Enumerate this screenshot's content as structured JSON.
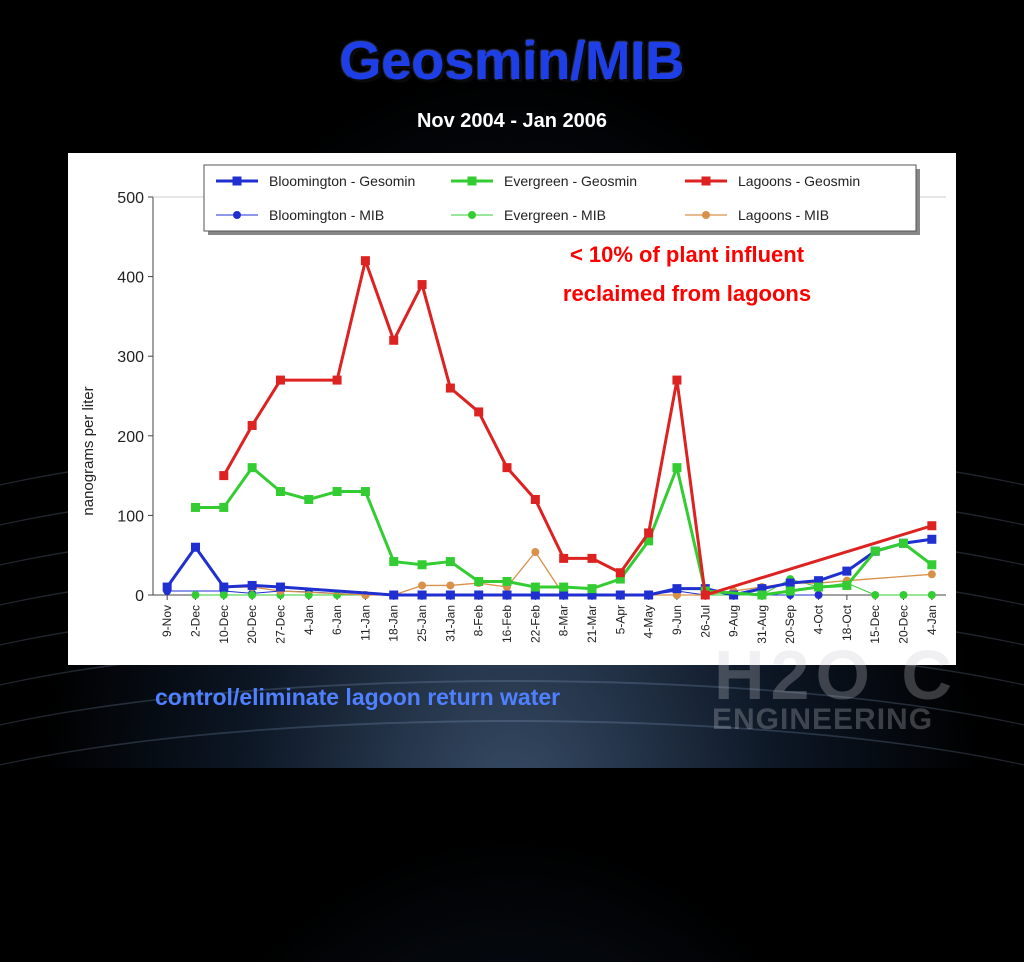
{
  "slide": {
    "title": "Geosmin/MIB",
    "subtitle": "Nov 2004 - Jan 2006",
    "caption": "control/eliminate lagoon return water",
    "watermark_top": "H2O C",
    "watermark_bottom": "ENGINEERING"
  },
  "colors": {
    "blue": "#1f2fd0",
    "green": "#33cc33",
    "red": "#dd2222",
    "orange": "#d9914a",
    "title": "#1e3fe8",
    "caption": "#4f80ff"
  },
  "chart_data": {
    "type": "line",
    "title": "",
    "xlabel": "",
    "ylabel": "nanograms per liter",
    "ylim": [
      0,
      500
    ],
    "yticks": [
      0,
      100,
      200,
      300,
      400,
      500
    ],
    "grid": false,
    "legend_position": "top",
    "annotation": [
      "< 10% of plant influent",
      "reclaimed from lagoons"
    ],
    "categories": [
      "9-Nov",
      "2-Dec",
      "10-Dec",
      "20-Dec",
      "27-Dec",
      "4-Jan",
      "6-Jan",
      "11-Jan",
      "18-Jan",
      "25-Jan",
      "31-Jan",
      "8-Feb",
      "16-Feb",
      "22-Feb",
      "8-Mar",
      "21-Mar",
      "5-Apr",
      "4-May",
      "9-Jun",
      "26-Jul",
      "9-Aug",
      "31-Aug",
      "20-Sep",
      "4-Oct",
      "18-Oct",
      "15-Dec",
      "20-Dec",
      "4-Jan"
    ],
    "series": [
      {
        "name": "Bloomington - Gesomin",
        "color": "#1f2fd0",
        "marker": "square",
        "width": 3,
        "values": [
          10,
          60,
          10,
          12,
          10,
          null,
          null,
          null,
          0,
          0,
          0,
          0,
          0,
          0,
          0,
          0,
          0,
          0,
          8,
          8,
          0,
          8,
          15,
          18,
          30,
          55,
          65,
          70
        ]
      },
      {
        "name": "Bloomington - MIB",
        "color": "#1f2fd0",
        "marker": "circle",
        "width": 1,
        "values": [
          5,
          null,
          5,
          2,
          5,
          4,
          null,
          0,
          0,
          0,
          0,
          0,
          0,
          0,
          0,
          0,
          0,
          0,
          5,
          0,
          0,
          0,
          0,
          0,
          null,
          null,
          null,
          null
        ]
      },
      {
        "name": "Evergreen - Geosmin",
        "color": "#33cc33",
        "marker": "square",
        "width": 3,
        "values": [
          null,
          110,
          110,
          160,
          130,
          120,
          130,
          130,
          42,
          38,
          42,
          17,
          17,
          10,
          10,
          8,
          20,
          68,
          160,
          5,
          null,
          0,
          5,
          10,
          12,
          55,
          65,
          38
        ]
      },
      {
        "name": "Evergreen - MIB",
        "color": "#33cc33",
        "marker": "circle",
        "width": 1,
        "values": [
          null,
          0,
          0,
          0,
          0,
          0,
          0,
          0,
          0,
          0,
          0,
          0,
          0,
          0,
          0,
          0,
          0,
          0,
          0,
          0,
          0,
          0,
          20,
          10,
          15,
          0,
          0,
          0
        ]
      },
      {
        "name": "Lagoons - Geosmin",
        "color": "#dd2222",
        "marker": "square",
        "width": 3,
        "values": [
          null,
          null,
          150,
          213,
          270,
          null,
          270,
          420,
          320,
          390,
          260,
          230,
          160,
          120,
          46,
          46,
          28,
          78,
          270,
          0,
          null,
          null,
          null,
          null,
          null,
          null,
          null,
          87
        ]
      },
      {
        "name": "Lagoons - MIB",
        "color": "#d9914a",
        "marker": "circle",
        "width": 1.3,
        "values": [
          null,
          null,
          10,
          10,
          5,
          null,
          null,
          0,
          0,
          12,
          12,
          15,
          10,
          54,
          0,
          0,
          0,
          0,
          0,
          0,
          5,
          10,
          15,
          15,
          18,
          null,
          null,
          26
        ]
      }
    ]
  }
}
